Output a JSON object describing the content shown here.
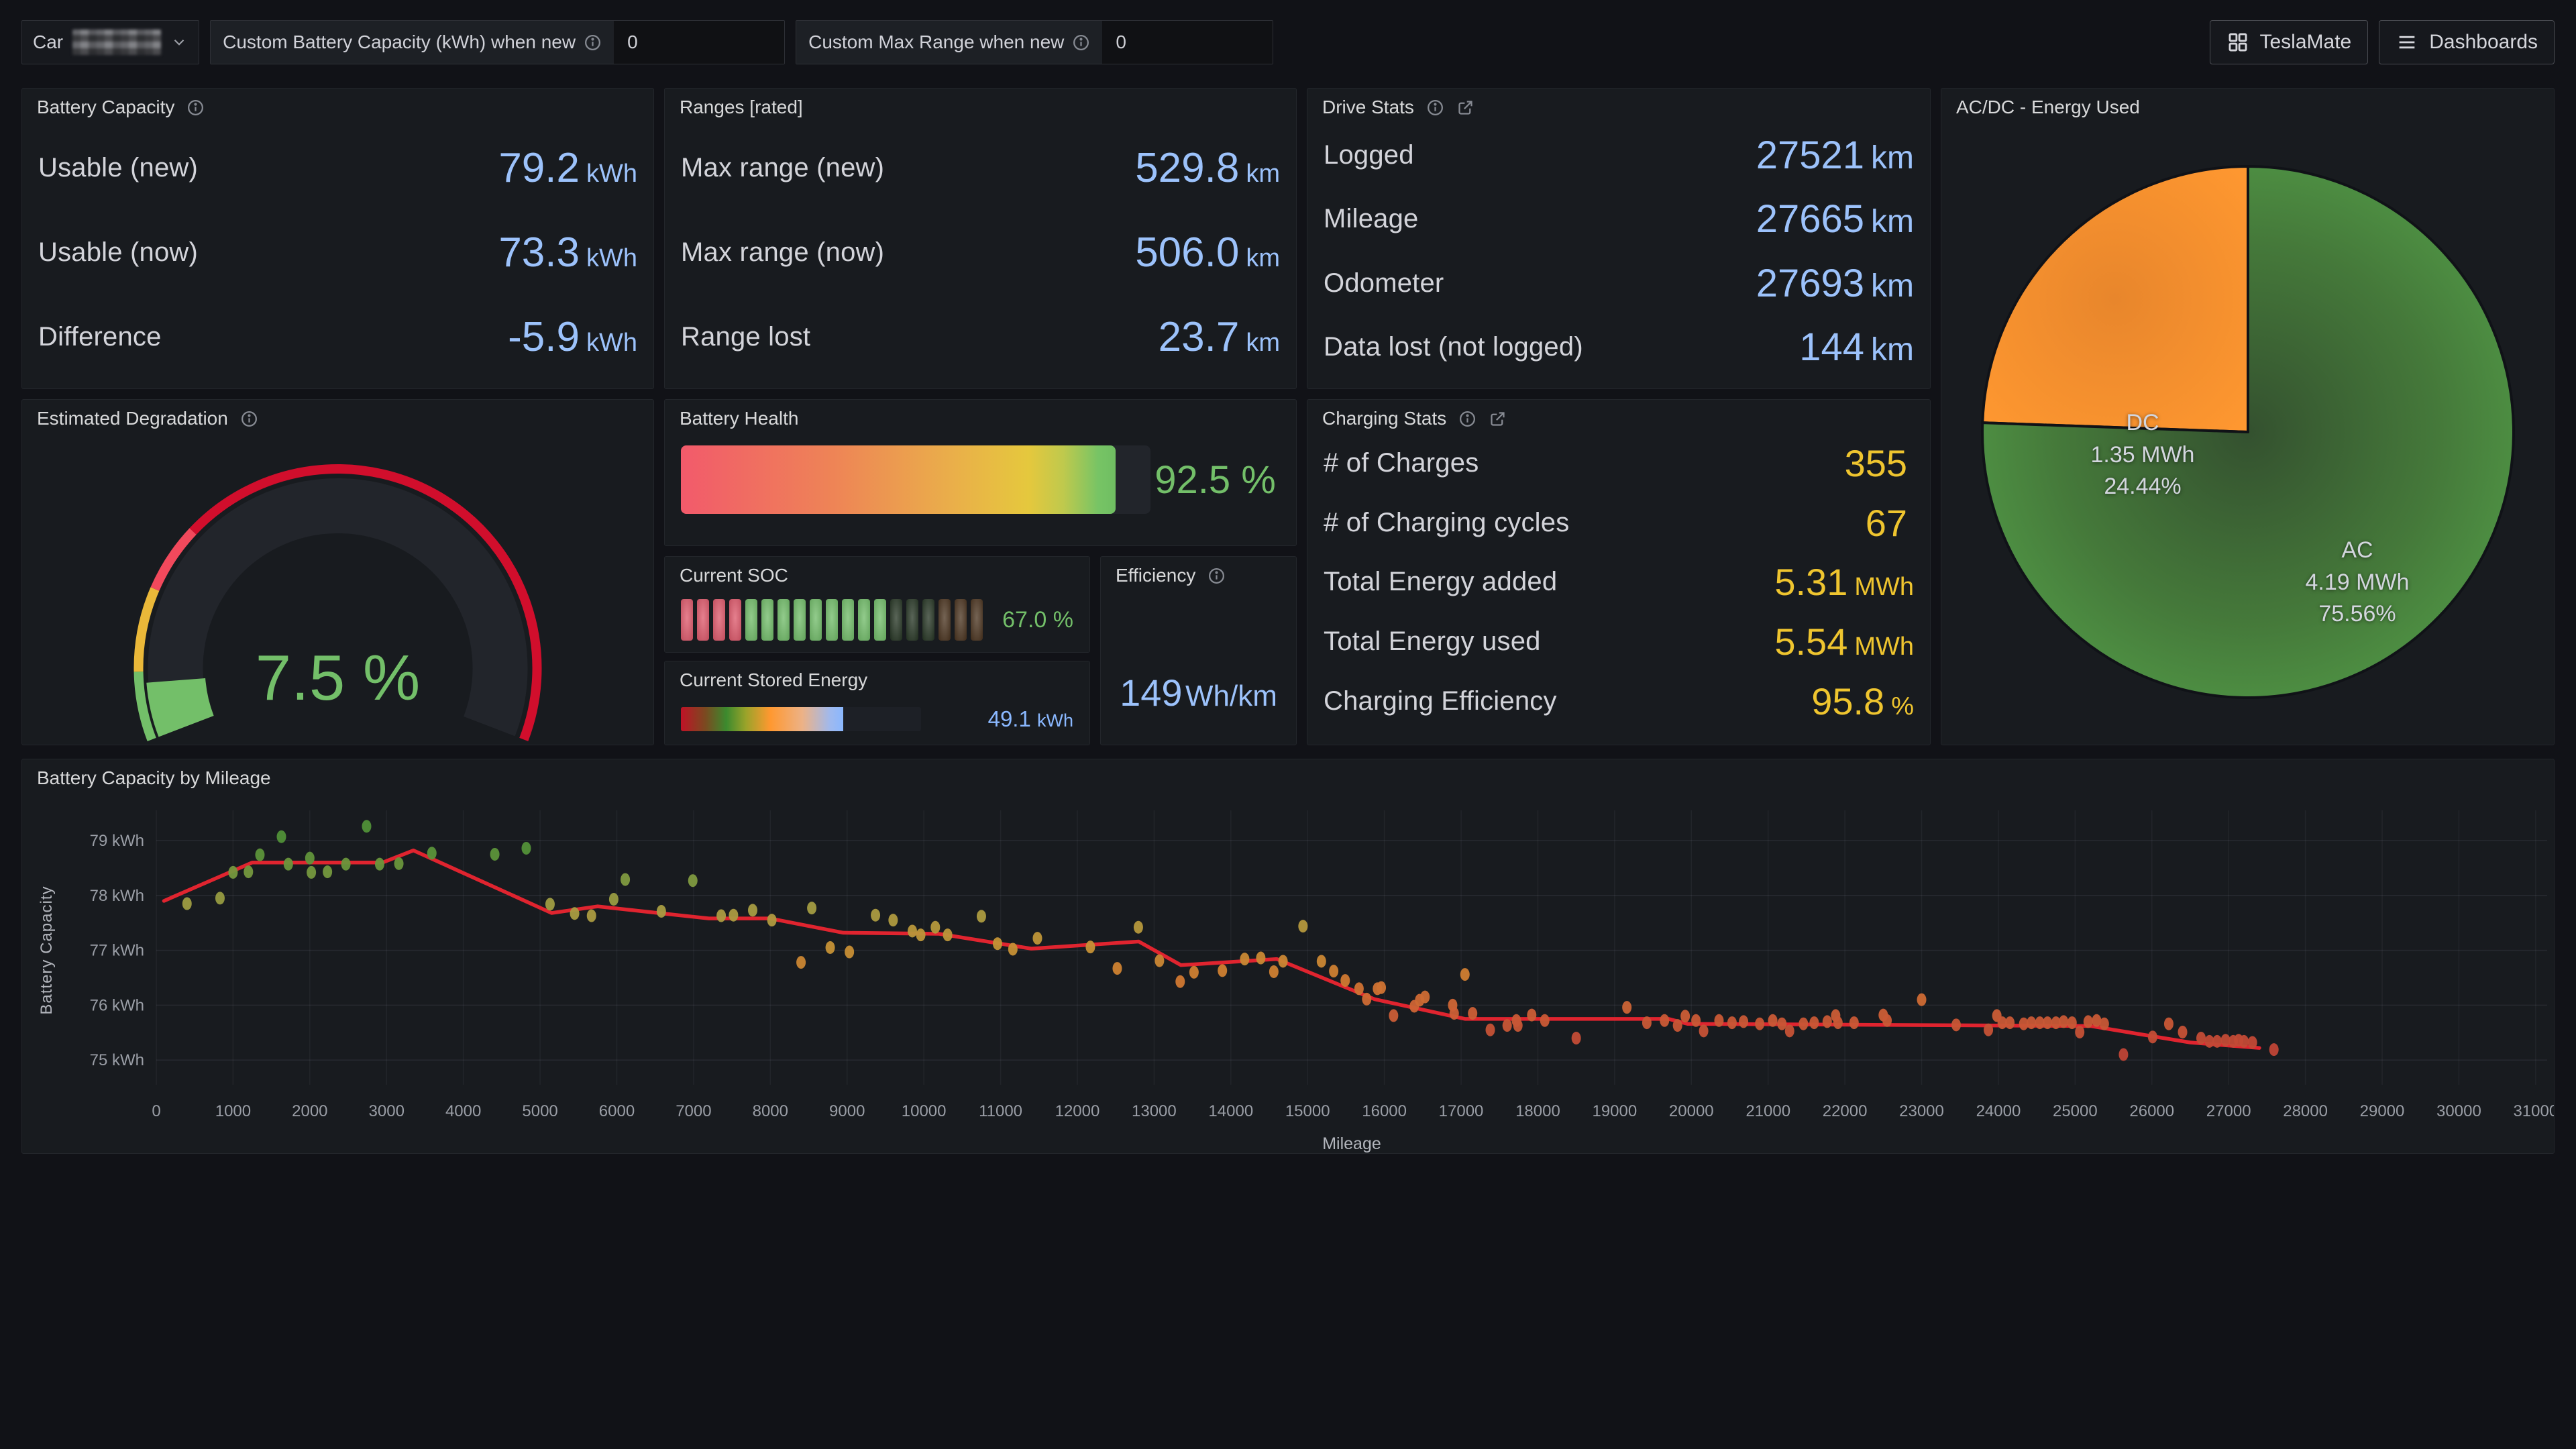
{
  "colors": {
    "blue": "#9CC2FB",
    "yellow": "#EFC52F",
    "green": "#73BF69",
    "stored_blue": "#8AB8FF",
    "trend_red": "#E0242F",
    "gauge_red": "#D10E2C",
    "gauge_pink": "#F2495C",
    "gauge_yellow": "#EAB839",
    "soc_red": "#DE5C6E",
    "soc_green": "#74BD6C",
    "soc_dim_green": "#2B3A29",
    "soc_dim_brown": "#4E3824",
    "pie_dc": "#FF9830",
    "pie_ac": "#55A24A"
  },
  "toolbar": {
    "car": {
      "label": "Car"
    },
    "fields": [
      {
        "label": "Custom Battery Capacity (kWh) when new",
        "value": "0"
      },
      {
        "label": "Custom Max Range when new",
        "value": "0"
      }
    ],
    "buttons": [
      {
        "label": "TeslaMate"
      },
      {
        "label": "Dashboards"
      }
    ]
  },
  "panels": {
    "battery_capacity": {
      "title": "Battery Capacity",
      "rows": [
        {
          "label": "Usable (new)",
          "value": "79.2",
          "unit": "kWh"
        },
        {
          "label": "Usable (now)",
          "value": "73.3",
          "unit": "kWh"
        },
        {
          "label": "Difference",
          "value": "-5.9",
          "unit": "kWh"
        }
      ]
    },
    "ranges": {
      "title": "Ranges [rated]",
      "rows": [
        {
          "label": "Max range (new)",
          "value": "529.8",
          "unit": "km"
        },
        {
          "label": "Max range (now)",
          "value": "506.0",
          "unit": "km"
        },
        {
          "label": "Range lost",
          "value": "23.7",
          "unit": "km"
        }
      ]
    },
    "drive_stats": {
      "title": "Drive Stats",
      "rows": [
        {
          "label": "Logged",
          "value": "27521",
          "unit": "km"
        },
        {
          "label": "Mileage",
          "value": "27665",
          "unit": "km"
        },
        {
          "label": "Odometer",
          "value": "27693",
          "unit": "km"
        },
        {
          "label": "Data lost (not logged)",
          "value": "144",
          "unit": "km"
        }
      ]
    },
    "charging_stats": {
      "title": "Charging Stats",
      "rows": [
        {
          "label": "# of Charges",
          "value": "355",
          "unit": ""
        },
        {
          "label": "# of Charging cycles",
          "value": "67",
          "unit": ""
        },
        {
          "label": "Total Energy added",
          "value": "5.31",
          "unit": "MWh"
        },
        {
          "label": "Total Energy used",
          "value": "5.54",
          "unit": "MWh"
        },
        {
          "label": "Charging Efficiency",
          "value": "95.8",
          "unit": "%"
        }
      ]
    },
    "acdc": {
      "title": "AC/DC - Energy Used",
      "slices": [
        {
          "name": "DC",
          "value": "1.35 MWh",
          "pct": "24.44%",
          "start_angle": 272,
          "angle": 88,
          "color": "#FF9830"
        },
        {
          "name": "AC",
          "value": "4.19 MWh",
          "pct": "75.56%",
          "start_angle": 0,
          "angle": 272,
          "color": "#55A24A"
        }
      ]
    },
    "degradation": {
      "title": "Estimated Degradation",
      "value": "7.5 %",
      "fraction": 0.075,
      "thresholds": [
        {
          "to": 0.09,
          "color": "#73BF69"
        },
        {
          "to": 0.2,
          "color": "#EAB839"
        },
        {
          "to": 0.29,
          "color": "#F2495C"
        },
        {
          "to": 1.0,
          "color": "#D10E2C"
        }
      ]
    },
    "battery_health": {
      "title": "Battery Health",
      "value": "92.5 %",
      "fill_pct": 92.5
    },
    "soc": {
      "title": "Current SOC",
      "value": "67.0 %",
      "cells": {
        "total": 19,
        "lit_red": 4,
        "lit_green": 9,
        "dim_green": 3,
        "dim_brown": 3
      }
    },
    "efficiency": {
      "title": "Efficiency",
      "value": "149",
      "unit": "Wh/km"
    },
    "stored_energy": {
      "title": "Current Stored Energy",
      "value": "49.1",
      "unit": "kWh",
      "fill_pct": 67.7
    }
  },
  "chart_data": {
    "type": "scatter",
    "title": "Battery Capacity by Mileage",
    "xlabel": "Mileage",
    "ylabel": "Battery Capacity",
    "xlim": [
      0,
      31150
    ],
    "x_tick_step": 1000,
    "x_tick_max": 31000,
    "ylim": [
      74.55,
      79.55
    ],
    "y_ticks": [
      75,
      76,
      77,
      78,
      79
    ],
    "y_unit": "kWh",
    "grid": true,
    "legend": "none",
    "trend_color": "#E0242F",
    "point_color_stops": [
      [
        75.2,
        "#BF4436"
      ],
      [
        75.9,
        "#CC6136"
      ],
      [
        76.5,
        "#D07B31"
      ],
      [
        77.1,
        "#C49336"
      ],
      [
        77.7,
        "#A89C42"
      ],
      [
        78.3,
        "#7E9A40"
      ],
      [
        78.9,
        "#509038"
      ]
    ],
    "trend": [
      [
        100,
        77.9
      ],
      [
        1250,
        78.6
      ],
      [
        2950,
        78.6
      ],
      [
        3350,
        78.82
      ],
      [
        5150,
        77.68
      ],
      [
        5750,
        77.8
      ],
      [
        6600,
        77.67
      ],
      [
        7200,
        77.58
      ],
      [
        8000,
        77.58
      ],
      [
        8950,
        77.32
      ],
      [
        10200,
        77.3
      ],
      [
        11400,
        77.03
      ],
      [
        12800,
        77.16
      ],
      [
        13350,
        76.73
      ],
      [
        14600,
        76.84
      ],
      [
        15870,
        76.11
      ],
      [
        17050,
        75.75
      ],
      [
        19700,
        75.75
      ],
      [
        19950,
        75.66
      ],
      [
        25200,
        75.62
      ],
      [
        26500,
        75.32
      ],
      [
        27400,
        75.22
      ]
    ],
    "points": [
      [
        400,
        77.85
      ],
      [
        830,
        77.95
      ],
      [
        1000,
        78.42
      ],
      [
        1200,
        78.43
      ],
      [
        1350,
        78.74
      ],
      [
        1630,
        79.07
      ],
      [
        1720,
        78.57
      ],
      [
        2000,
        78.68
      ],
      [
        2020,
        78.42
      ],
      [
        2230,
        78.43
      ],
      [
        2470,
        78.57
      ],
      [
        2740,
        79.26
      ],
      [
        2910,
        78.57
      ],
      [
        3160,
        78.58
      ],
      [
        3590,
        78.77
      ],
      [
        4410,
        78.75
      ],
      [
        4820,
        78.86
      ],
      [
        5130,
        77.84
      ],
      [
        5450,
        77.67
      ],
      [
        5670,
        77.63
      ],
      [
        5960,
        77.93
      ],
      [
        6110,
        78.29
      ],
      [
        6580,
        77.71
      ],
      [
        6990,
        78.27
      ],
      [
        7360,
        77.63
      ],
      [
        7520,
        77.64
      ],
      [
        7770,
        77.73
      ],
      [
        8020,
        77.55
      ],
      [
        8400,
        76.78
      ],
      [
        8540,
        77.77
      ],
      [
        8780,
        77.05
      ],
      [
        9030,
        76.97
      ],
      [
        9370,
        77.64
      ],
      [
        9600,
        77.55
      ],
      [
        9850,
        77.35
      ],
      [
        9960,
        77.28
      ],
      [
        10150,
        77.42
      ],
      [
        10310,
        77.28
      ],
      [
        10750,
        77.62
      ],
      [
        10960,
        77.12
      ],
      [
        11160,
        77.02
      ],
      [
        11480,
        77.22
      ],
      [
        12170,
        77.06
      ],
      [
        12520,
        76.67
      ],
      [
        12795,
        77.42
      ],
      [
        13070,
        76.81
      ],
      [
        13340,
        76.43
      ],
      [
        13520,
        76.6
      ],
      [
        13890,
        76.63
      ],
      [
        14180,
        76.84
      ],
      [
        14390,
        76.86
      ],
      [
        14560,
        76.61
      ],
      [
        14680,
        76.8
      ],
      [
        14940,
        77.44
      ],
      [
        15180,
        76.8
      ],
      [
        15340,
        76.62
      ],
      [
        15490,
        76.45
      ],
      [
        15670,
        76.3
      ],
      [
        15770,
        76.11
      ],
      [
        15910,
        76.3
      ],
      [
        15960,
        76.32
      ],
      [
        16120,
        75.81
      ],
      [
        16390,
        75.98
      ],
      [
        16460,
        76.09
      ],
      [
        16530,
        76.15
      ],
      [
        16890,
        76.0
      ],
      [
        16910,
        75.85
      ],
      [
        17050,
        76.56
      ],
      [
        17150,
        75.85
      ],
      [
        17380,
        75.55
      ],
      [
        17600,
        75.63
      ],
      [
        17720,
        75.72
      ],
      [
        17740,
        75.63
      ],
      [
        17920,
        75.82
      ],
      [
        18090,
        75.72
      ],
      [
        18500,
        75.4
      ],
      [
        19160,
        75.96
      ],
      [
        19420,
        75.68
      ],
      [
        19650,
        75.72
      ],
      [
        19820,
        75.63
      ],
      [
        19920,
        75.8
      ],
      [
        20060,
        75.72
      ],
      [
        20160,
        75.53
      ],
      [
        20360,
        75.72
      ],
      [
        20530,
        75.68
      ],
      [
        20680,
        75.7
      ],
      [
        20890,
        75.66
      ],
      [
        21060,
        75.72
      ],
      [
        21180,
        75.66
      ],
      [
        21280,
        75.53
      ],
      [
        21460,
        75.66
      ],
      [
        21600,
        75.68
      ],
      [
        21770,
        75.7
      ],
      [
        21880,
        75.81
      ],
      [
        21910,
        75.68
      ],
      [
        22120,
        75.68
      ],
      [
        22500,
        75.82
      ],
      [
        22550,
        75.72
      ],
      [
        23000,
        76.1
      ],
      [
        23450,
        75.64
      ],
      [
        23870,
        75.55
      ],
      [
        23980,
        75.81
      ],
      [
        24050,
        75.68
      ],
      [
        24150,
        75.68
      ],
      [
        24330,
        75.66
      ],
      [
        24430,
        75.68
      ],
      [
        24540,
        75.68
      ],
      [
        24640,
        75.68
      ],
      [
        24750,
        75.68
      ],
      [
        24850,
        75.7
      ],
      [
        24960,
        75.68
      ],
      [
        25060,
        75.51
      ],
      [
        25170,
        75.7
      ],
      [
        25280,
        75.72
      ],
      [
        25380,
        75.66
      ],
      [
        25630,
        75.1
      ],
      [
        26010,
        75.42
      ],
      [
        26220,
        75.66
      ],
      [
        26400,
        75.51
      ],
      [
        26640,
        75.4
      ],
      [
        26750,
        75.34
      ],
      [
        26850,
        75.34
      ],
      [
        26960,
        75.36
      ],
      [
        27060,
        75.34
      ],
      [
        27130,
        75.36
      ],
      [
        27200,
        75.34
      ],
      [
        27310,
        75.32
      ],
      [
        27590,
        75.19
      ]
    ]
  }
}
